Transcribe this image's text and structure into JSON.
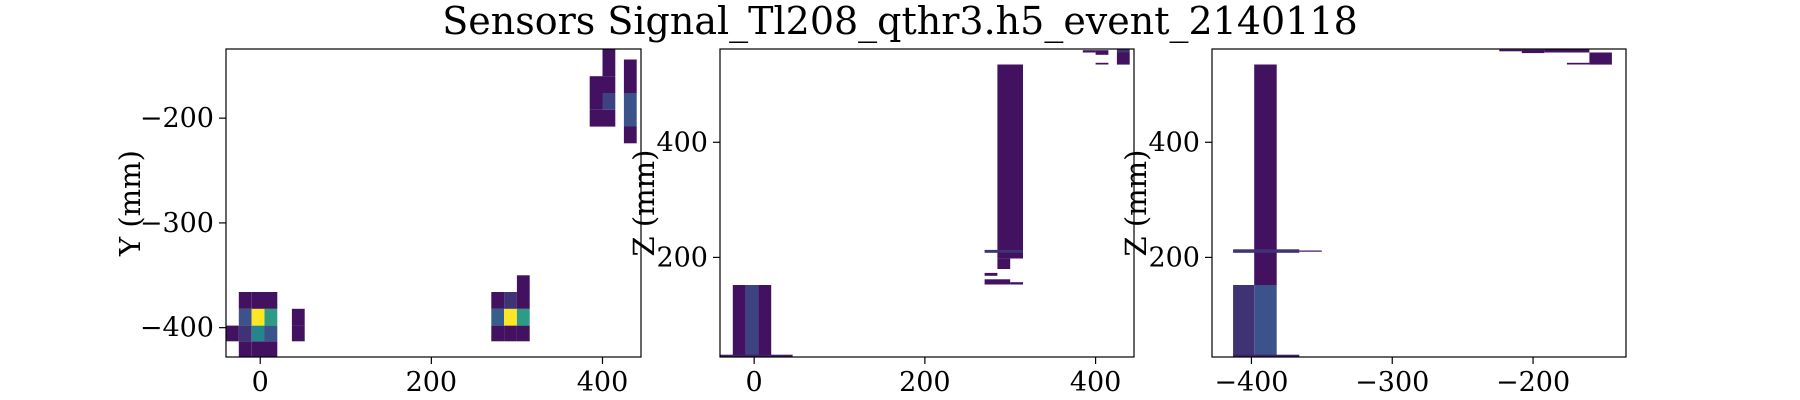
{
  "chart_data": {
    "type": "heatmap",
    "title": "Sensors Signal_Tl208_qthr3.h5_event_2140118",
    "colormap": [
      "#440154",
      "#3b528b",
      "#21908d",
      "#5dc863",
      "#fde725"
    ],
    "panels": [
      {
        "xlabel": "",
        "ylabel": "Y (mm)",
        "xlim": [
          -40,
          445
        ],
        "ylim": [
          -428,
          -134
        ],
        "xticks": [
          0,
          200,
          400
        ],
        "yticks": [
          -200,
          -300,
          -400
        ],
        "tick_labels_x": [
          "0",
          "200",
          "400"
        ],
        "tick_labels_y": [
          "−200",
          "−300",
          "−400"
        ],
        "cells": [
          {
            "x0": -40,
            "x1": -25,
            "y0": -413,
            "y1": -398,
            "v": 0.05
          },
          {
            "x0": -25,
            "x1": -10,
            "y0": -428,
            "y1": -413,
            "v": 0.05
          },
          {
            "x0": -25,
            "x1": -10,
            "y0": -413,
            "y1": -398,
            "v": 0.15
          },
          {
            "x0": -25,
            "x1": -10,
            "y0": -398,
            "y1": -382,
            "v": 0.25
          },
          {
            "x0": -25,
            "x1": -10,
            "y0": -382,
            "y1": -366,
            "v": 0.05
          },
          {
            "x0": -10,
            "x1": 5,
            "y0": -428,
            "y1": -413,
            "v": 0.05
          },
          {
            "x0": -10,
            "x1": 5,
            "y0": -413,
            "y1": -398,
            "v": 0.45
          },
          {
            "x0": -10,
            "x1": 5,
            "y0": -398,
            "y1": -382,
            "v": 1.0
          },
          {
            "x0": -10,
            "x1": 5,
            "y0": -382,
            "y1": -366,
            "v": 0.05
          },
          {
            "x0": 5,
            "x1": 20,
            "y0": -428,
            "y1": -413,
            "v": 0.05
          },
          {
            "x0": 5,
            "x1": 20,
            "y0": -413,
            "y1": -398,
            "v": 0.25
          },
          {
            "x0": 5,
            "x1": 20,
            "y0": -398,
            "y1": -382,
            "v": 0.55
          },
          {
            "x0": 5,
            "x1": 20,
            "y0": -382,
            "y1": -366,
            "v": 0.05
          },
          {
            "x0": 37,
            "x1": 52,
            "y0": -413,
            "y1": -398,
            "v": 0.05
          },
          {
            "x0": 37,
            "x1": 52,
            "y0": -398,
            "y1": -382,
            "v": 0.05
          },
          {
            "x0": 270,
            "x1": 285,
            "y0": -413,
            "y1": -398,
            "v": 0.05
          },
          {
            "x0": 270,
            "x1": 285,
            "y0": -398,
            "y1": -382,
            "v": 0.3
          },
          {
            "x0": 270,
            "x1": 285,
            "y0": -382,
            "y1": -366,
            "v": 0.05
          },
          {
            "x0": 285,
            "x1": 300,
            "y0": -413,
            "y1": -398,
            "v": 0.05
          },
          {
            "x0": 285,
            "x1": 300,
            "y0": -398,
            "y1": -382,
            "v": 1.0
          },
          {
            "x0": 285,
            "x1": 300,
            "y0": -382,
            "y1": -366,
            "v": 0.15
          },
          {
            "x0": 300,
            "x1": 315,
            "y0": -413,
            "y1": -398,
            "v": 0.05
          },
          {
            "x0": 300,
            "x1": 315,
            "y0": -398,
            "y1": -382,
            "v": 0.55
          },
          {
            "x0": 300,
            "x1": 315,
            "y0": -382,
            "y1": -366,
            "v": 0.05
          },
          {
            "x0": 300,
            "x1": 315,
            "y0": -366,
            "y1": -350,
            "v": 0.05
          },
          {
            "x0": 385,
            "x1": 400,
            "y0": -208,
            "y1": -192,
            "v": 0.05
          },
          {
            "x0": 385,
            "x1": 400,
            "y0": -192,
            "y1": -176,
            "v": 0.05
          },
          {
            "x0": 385,
            "x1": 400,
            "y0": -176,
            "y1": -160,
            "v": 0.05
          },
          {
            "x0": 400,
            "x1": 415,
            "y0": -208,
            "y1": -192,
            "v": 0.05
          },
          {
            "x0": 400,
            "x1": 415,
            "y0": -192,
            "y1": -176,
            "v": 0.2
          },
          {
            "x0": 400,
            "x1": 415,
            "y0": -176,
            "y1": -160,
            "v": 0.05
          },
          {
            "x0": 400,
            "x1": 415,
            "y0": -160,
            "y1": -134,
            "v": 0.05
          },
          {
            "x0": 425,
            "x1": 440,
            "y0": -224,
            "y1": -208,
            "v": 0.05
          },
          {
            "x0": 425,
            "x1": 440,
            "y0": -208,
            "y1": -176,
            "v": 0.25
          },
          {
            "x0": 425,
            "x1": 440,
            "y0": -176,
            "y1": -144,
            "v": 0.05
          }
        ]
      },
      {
        "xlabel": "",
        "ylabel": "Z (mm)",
        "xlim": [
          -40,
          445
        ],
        "ylim": [
          27,
          562
        ],
        "xticks": [
          0,
          200,
          400
        ],
        "yticks": [
          200,
          400
        ],
        "tick_labels_x": [
          "0",
          "200",
          "400"
        ],
        "tick_labels_y": [
          "200",
          "400"
        ],
        "cells": [
          {
            "x0": -25,
            "x1": -10,
            "y0": 28,
            "y1": 152,
            "v": 0.05
          },
          {
            "x0": -10,
            "x1": 5,
            "y0": 28,
            "y1": 152,
            "v": 0.2
          },
          {
            "x0": 5,
            "x1": 20,
            "y0": 28,
            "y1": 152,
            "v": 0.05
          },
          {
            "x0": -40,
            "x1": 45,
            "y0": 27,
            "y1": 31,
            "v": 0.1
          },
          {
            "x0": 285,
            "x1": 315,
            "y0": 198,
            "y1": 535,
            "v": 0.05
          },
          {
            "x0": 270,
            "x1": 315,
            "y0": 208,
            "y1": 213,
            "v": 0.15
          },
          {
            "x0": 285,
            "x1": 300,
            "y0": 180,
            "y1": 198,
            "v": 0.05
          },
          {
            "x0": 270,
            "x1": 285,
            "y0": 168,
            "y1": 173,
            "v": 0.05
          },
          {
            "x0": 270,
            "x1": 300,
            "y0": 153,
            "y1": 162,
            "v": 0.05
          },
          {
            "x0": 300,
            "x1": 315,
            "y0": 153,
            "y1": 157,
            "v": 0.05
          },
          {
            "x0": 385,
            "x1": 400,
            "y0": 556,
            "y1": 560,
            "v": 0.05
          },
          {
            "x0": 400,
            "x1": 415,
            "y0": 552,
            "y1": 560,
            "v": 0.05
          },
          {
            "x0": 400,
            "x1": 415,
            "y0": 535,
            "y1": 538,
            "v": 0.05
          },
          {
            "x0": 425,
            "x1": 440,
            "y0": 535,
            "y1": 556,
            "v": 0.05
          },
          {
            "x0": 425,
            "x1": 440,
            "y0": 556,
            "y1": 562,
            "v": 0.15
          }
        ]
      },
      {
        "xlabel": "",
        "ylabel": "Z (mm)",
        "xlim": [
          -428,
          -134
        ],
        "ylim": [
          27,
          562
        ],
        "xticks": [
          -400,
          -300,
          -200
        ],
        "yticks": [
          200,
          400
        ],
        "tick_labels_x": [
          "−400",
          "−300",
          "−200"
        ],
        "tick_labels_y": [
          "200",
          "400"
        ],
        "cells": [
          {
            "x0": -413,
            "x1": -398,
            "y0": 28,
            "y1": 152,
            "v": 0.15
          },
          {
            "x0": -398,
            "x1": -382,
            "y0": 28,
            "y1": 152,
            "v": 0.25
          },
          {
            "x0": -398,
            "x1": -382,
            "y0": 152,
            "y1": 535,
            "v": 0.05
          },
          {
            "x0": -413,
            "x1": -366,
            "y0": 208,
            "y1": 214,
            "v": 0.15
          },
          {
            "x0": -366,
            "x1": -350,
            "y0": 210,
            "y1": 212,
            "v": 0.05
          },
          {
            "x0": -413,
            "x1": -366,
            "y0": 27,
            "y1": 31,
            "v": 0.1
          },
          {
            "x0": -224,
            "x1": -208,
            "y0": 558,
            "y1": 561,
            "v": 0.05
          },
          {
            "x0": -208,
            "x1": -192,
            "y0": 555,
            "y1": 561,
            "v": 0.05
          },
          {
            "x0": -192,
            "x1": -160,
            "y0": 556,
            "y1": 562,
            "v": 0.05
          },
          {
            "x0": -176,
            "x1": -160,
            "y0": 535,
            "y1": 538,
            "v": 0.05
          },
          {
            "x0": -160,
            "x1": -144,
            "y0": 535,
            "y1": 556,
            "v": 0.05
          }
        ]
      }
    ]
  }
}
